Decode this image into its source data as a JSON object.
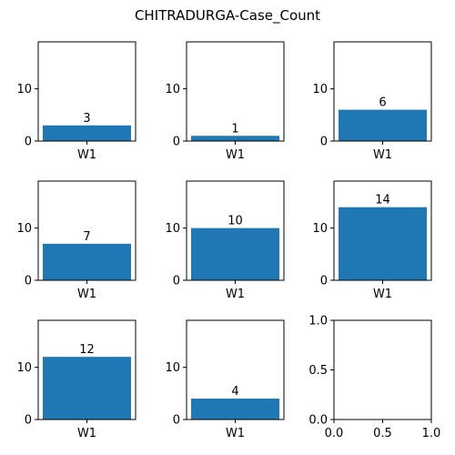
{
  "chart_data": {
    "title": "CHITRADURGA-Case_Count",
    "type": "bar",
    "bar_color": "#1f77b4",
    "panels": [
      {
        "type": "bar",
        "categories": [
          "W1"
        ],
        "values": [
          3
        ],
        "ylim": [
          0,
          19
        ],
        "yticks": [
          "0",
          "10"
        ]
      },
      {
        "type": "bar",
        "categories": [
          "W1"
        ],
        "values": [
          1
        ],
        "ylim": [
          0,
          19
        ],
        "yticks": [
          "0",
          "10"
        ]
      },
      {
        "type": "bar",
        "categories": [
          "W1"
        ],
        "values": [
          6
        ],
        "ylim": [
          0,
          19
        ],
        "yticks": [
          "0",
          "10"
        ]
      },
      {
        "type": "bar",
        "categories": [
          "W1"
        ],
        "values": [
          7
        ],
        "ylim": [
          0,
          19
        ],
        "yticks": [
          "0",
          "10"
        ]
      },
      {
        "type": "bar",
        "categories": [
          "W1"
        ],
        "values": [
          10
        ],
        "ylim": [
          0,
          19
        ],
        "yticks": [
          "0",
          "10"
        ]
      },
      {
        "type": "bar",
        "categories": [
          "W1"
        ],
        "values": [
          14
        ],
        "ylim": [
          0,
          19
        ],
        "yticks": [
          "0",
          "10"
        ]
      },
      {
        "type": "bar",
        "categories": [
          "W1"
        ],
        "values": [
          12
        ],
        "ylim": [
          0,
          19
        ],
        "yticks": [
          "0",
          "10"
        ]
      },
      {
        "type": "bar",
        "categories": [
          "W1"
        ],
        "values": [
          4
        ],
        "ylim": [
          0,
          19
        ],
        "yticks": [
          "0",
          "10"
        ]
      },
      {
        "type": "empty",
        "xlim": [
          0,
          1
        ],
        "ylim": [
          0,
          1
        ],
        "xticks": [
          "0.0",
          "0.5",
          "1.0"
        ],
        "yticks": [
          "0.0",
          "0.5",
          "1.0"
        ]
      }
    ]
  }
}
